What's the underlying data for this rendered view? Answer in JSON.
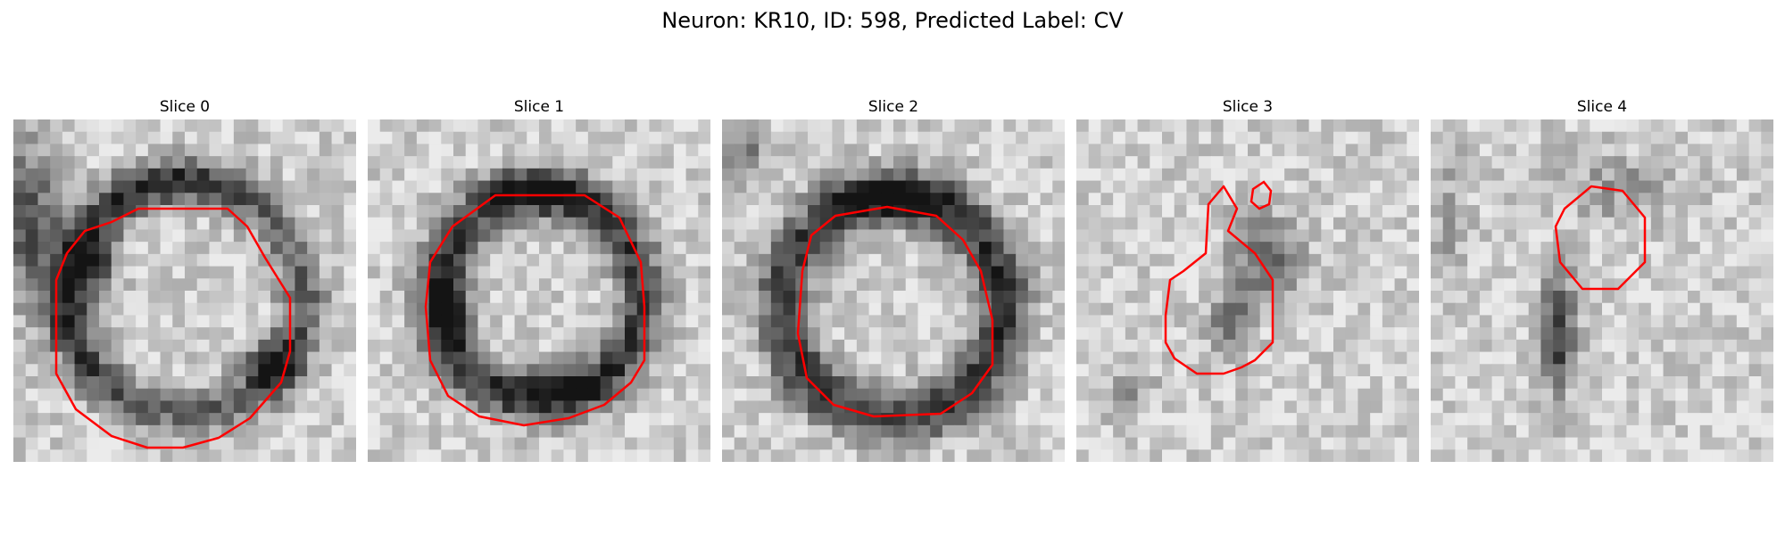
{
  "figure": {
    "title": "Neuron: KR10, ID: 598, Predicted Label: CV"
  },
  "panels": [
    {
      "title": "Slice 0"
    },
    {
      "title": "Slice 1"
    },
    {
      "title": "Slice 2"
    },
    {
      "title": "Slice 3"
    },
    {
      "title": "Slice 4"
    }
  ],
  "colors": {
    "contour": "#ff0000",
    "background": "#ffffff"
  }
}
